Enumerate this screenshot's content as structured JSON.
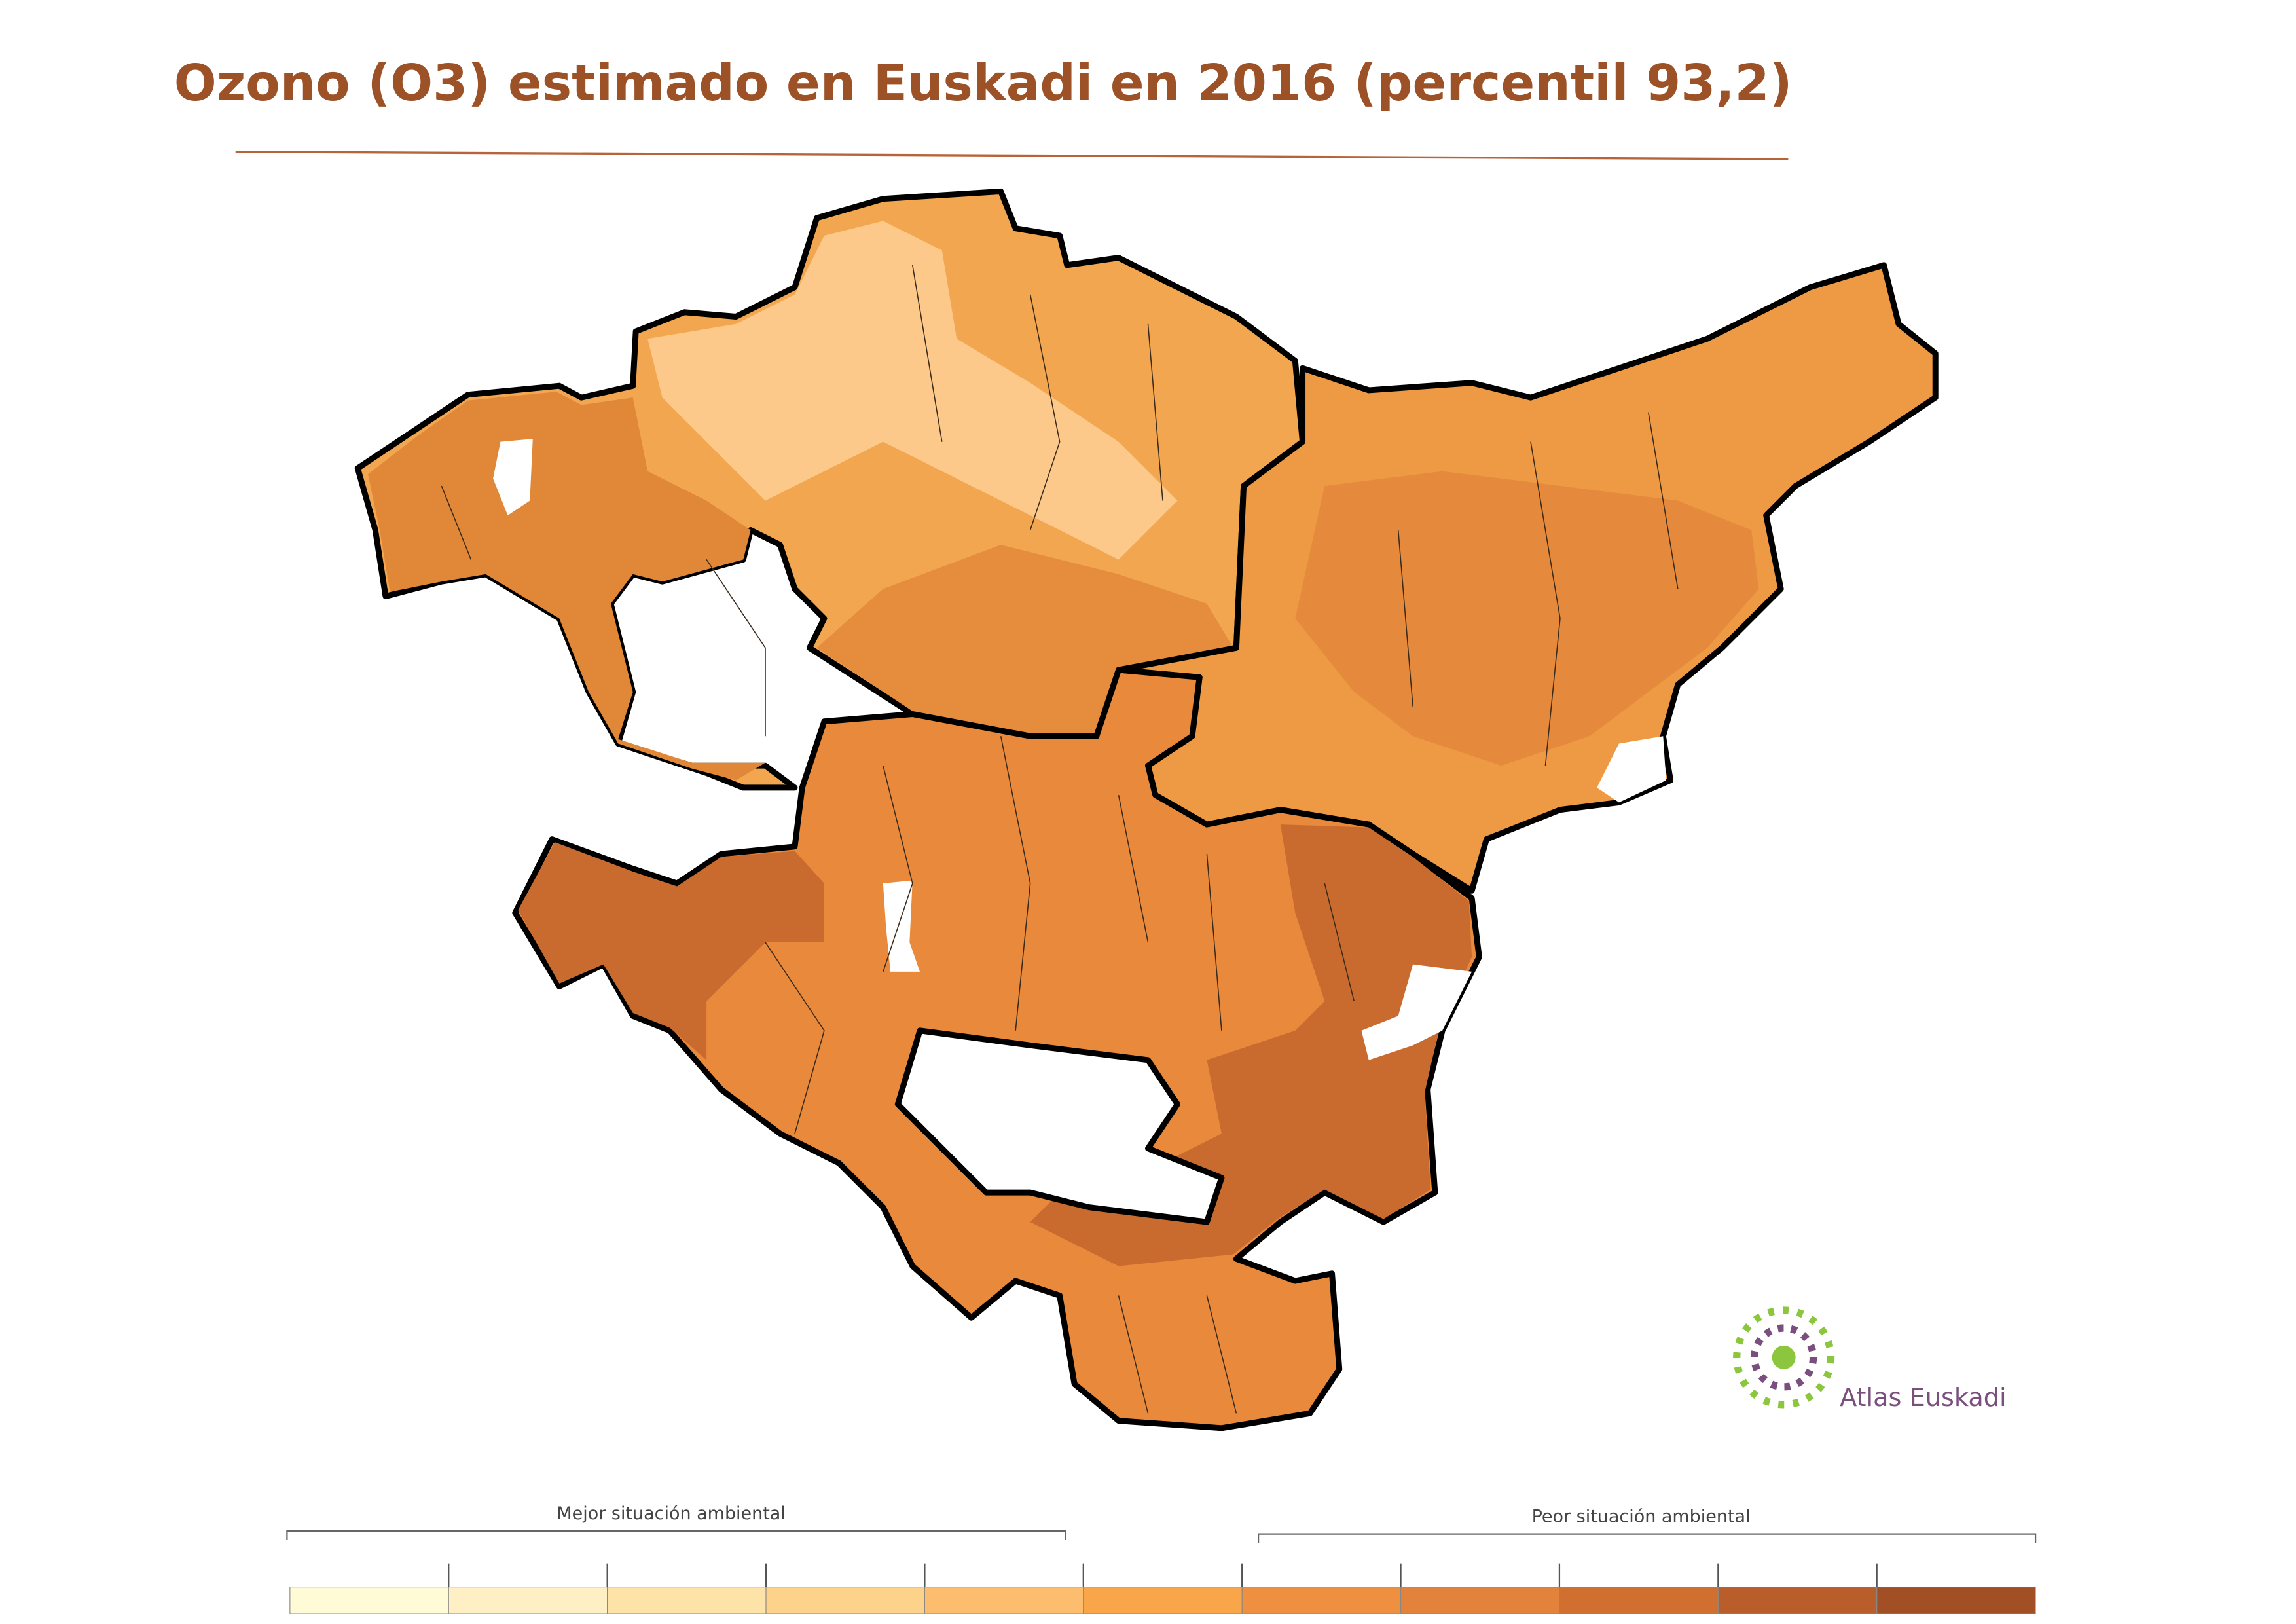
{
  "title": "Ozono (O3) estimado en Euskadi en 2016 (percentil 93,2)",
  "logo": {
    "text": "Atlas Euskadi"
  },
  "legend": {
    "left_label": "Mejor situación ambiental",
    "right_label": "Peor situación ambiental",
    "colors": [
      "#fffbd6",
      "#fef0c4",
      "#fde3a8",
      "#fdd38c",
      "#fdbd6e",
      "#f9a64a",
      "#ef9040",
      "#e3823a",
      "#d06f30",
      "#b95e2a",
      "#a24f26"
    ]
  }
}
